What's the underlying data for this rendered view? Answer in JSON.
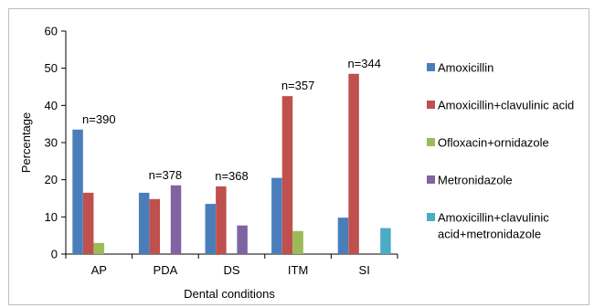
{
  "chart_data": {
    "type": "bar",
    "title": "",
    "xlabel": "Dental conditions",
    "ylabel": "Percentage",
    "ylim": [
      0,
      60
    ],
    "yticks": [
      0,
      10,
      20,
      30,
      40,
      50,
      60
    ],
    "grid": false,
    "legend_position": "right",
    "categories": [
      "AP",
      "PDA",
      "DS",
      "ITM",
      "SI"
    ],
    "annotations": [
      "n=390",
      "n=378",
      "n=368",
      "n=357",
      "n=344"
    ],
    "series": [
      {
        "name": "Amoxicillin",
        "color": "#4a7ebb",
        "values": [
          33.5,
          16.5,
          13.5,
          20.5,
          9.8
        ]
      },
      {
        "name": "Amoxicillin+clavulinic acid",
        "color": "#c0504d",
        "values": [
          16.5,
          14.8,
          18.2,
          42.5,
          48.5
        ]
      },
      {
        "name": "Ofloxacin+ornidazole",
        "color": "#9bbb59",
        "values": [
          3.0,
          null,
          null,
          6.2,
          null
        ]
      },
      {
        "name": "Metronidazole",
        "color": "#8064a2",
        "values": [
          null,
          18.5,
          7.7,
          null,
          null
        ]
      },
      {
        "name": "Amoxicillin+clavulinic acid+metronidazole",
        "color": "#4bacc6",
        "values": [
          null,
          null,
          null,
          null,
          7.0
        ]
      }
    ],
    "legend_lines": [
      [
        "Amoxicillin"
      ],
      [
        "Amoxicillin+clavulinic acid"
      ],
      [
        "Ofloxacin+ornidazole"
      ],
      [
        "Metronidazole"
      ],
      [
        "Amoxicillin+clavulinic",
        "acid+metronidazole"
      ]
    ]
  }
}
